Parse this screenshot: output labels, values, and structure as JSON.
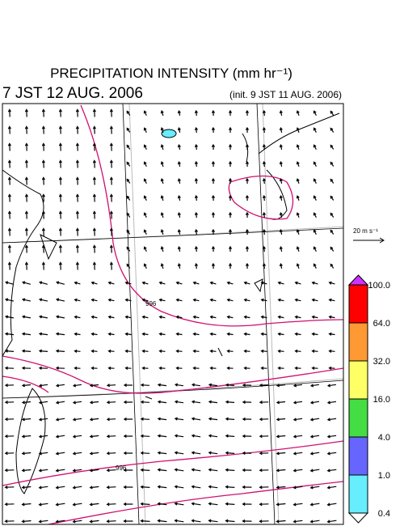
{
  "header": {
    "title": "PRECIPITATION INTENSITY (mm hr⁻¹)",
    "valid_time": "7 JST 12 AUG. 2006",
    "init_time": "(init. 9 JST 11 AUG. 2006)"
  },
  "wind_scale": {
    "label": "20 m s⁻¹"
  },
  "colorbar": {
    "labels": [
      "100.0",
      "64.0",
      "32.0",
      "16.0",
      "4.0",
      "1.0",
      "0.4"
    ],
    "colors": [
      "#ff0000",
      "#ff9933",
      "#ffff66",
      "#44dd44",
      "#6666ff",
      "#66eeff"
    ],
    "over_color": "#cc33ff",
    "under_color": "#ffffff"
  },
  "contour_labels": [
    "996",
    "996"
  ]
}
